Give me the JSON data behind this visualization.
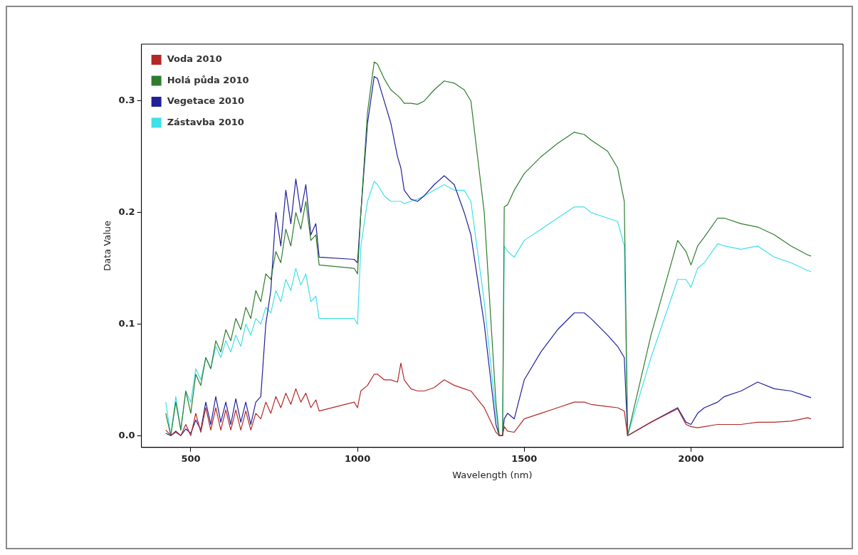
{
  "chart_data": {
    "type": "line",
    "xlabel": "Wavelength (nm)",
    "ylabel": "Data Value",
    "x": [
      425,
      440,
      455,
      470,
      485,
      500,
      515,
      530,
      545,
      560,
      575,
      590,
      605,
      620,
      635,
      650,
      665,
      680,
      695,
      710,
      725,
      740,
      755,
      770,
      785,
      800,
      815,
      830,
      845,
      860,
      875,
      885,
      990,
      1000,
      1010,
      1030,
      1050,
      1060,
      1080,
      1100,
      1120,
      1130,
      1140,
      1160,
      1180,
      1200,
      1230,
      1260,
      1290,
      1320,
      1340,
      1380,
      1415,
      1425,
      1435,
      1440,
      1450,
      1470,
      1500,
      1550,
      1600,
      1650,
      1680,
      1700,
      1750,
      1780,
      1800,
      1810,
      1880,
      1960,
      1985,
      2000,
      2020,
      2040,
      2080,
      2100,
      2150,
      2200,
      2250,
      2300,
      2350,
      2360
    ],
    "series": [
      {
        "name": "Voda 2010",
        "color": "#b42828",
        "values": [
          0.005,
          0,
          0.003,
          0,
          0.01,
          0,
          0.02,
          0.003,
          0.025,
          0.005,
          0.025,
          0.005,
          0.023,
          0.005,
          0.023,
          0.005,
          0.022,
          0.005,
          0.02,
          0.015,
          0.03,
          0.02,
          0.035,
          0.025,
          0.038,
          0.028,
          0.042,
          0.03,
          0.038,
          0.025,
          0.032,
          0.022,
          0.03,
          0.025,
          0.04,
          0.045,
          0.055,
          0.055,
          0.05,
          0.05,
          0.048,
          0.065,
          0.05,
          0.042,
          0.04,
          0.04,
          0.043,
          0.05,
          0.045,
          0.042,
          0.04,
          0.025,
          0.003,
          0,
          0,
          0.008,
          0.004,
          0.003,
          0.015,
          0.02,
          0.025,
          0.03,
          0.03,
          0.028,
          0.026,
          0.025,
          0.022,
          0,
          0.012,
          0.024,
          0.01,
          0.008,
          0.007,
          0.008,
          0.01,
          0.01,
          0.01,
          0.012,
          0.012,
          0.013,
          0.016,
          0.015
        ]
      },
      {
        "name": "Holá půda 2010",
        "color": "#2e7d2e",
        "values": [
          0.02,
          0,
          0.03,
          0.005,
          0.04,
          0.02,
          0.055,
          0.045,
          0.07,
          0.06,
          0.085,
          0.075,
          0.095,
          0.085,
          0.105,
          0.095,
          0.115,
          0.105,
          0.13,
          0.12,
          0.145,
          0.14,
          0.165,
          0.155,
          0.185,
          0.17,
          0.2,
          0.185,
          0.21,
          0.175,
          0.18,
          0.153,
          0.15,
          0.145,
          0.2,
          0.29,
          0.335,
          0.333,
          0.32,
          0.31,
          0.305,
          0.302,
          0.298,
          0.298,
          0.297,
          0.3,
          0.31,
          0.318,
          0.316,
          0.31,
          0.3,
          0.2,
          0.03,
          0,
          0,
          0.205,
          0.207,
          0.22,
          0.235,
          0.25,
          0.262,
          0.272,
          0.27,
          0.265,
          0.255,
          0.24,
          0.21,
          0,
          0.09,
          0.175,
          0.165,
          0.153,
          0.17,
          0.178,
          0.195,
          0.195,
          0.19,
          0.187,
          0.18,
          0.17,
          0.162,
          0.161
        ]
      },
      {
        "name": "Vegetace 2010",
        "color": "#20209a",
        "values": [
          0.002,
          0,
          0.004,
          0,
          0.006,
          0.002,
          0.014,
          0.005,
          0.03,
          0.01,
          0.035,
          0.012,
          0.03,
          0.01,
          0.033,
          0.012,
          0.03,
          0.01,
          0.03,
          0.035,
          0.1,
          0.13,
          0.2,
          0.17,
          0.22,
          0.19,
          0.23,
          0.2,
          0.225,
          0.18,
          0.19,
          0.16,
          0.158,
          0.155,
          0.2,
          0.28,
          0.322,
          0.32,
          0.3,
          0.28,
          0.25,
          0.24,
          0.22,
          0.212,
          0.21,
          0.215,
          0.225,
          0.233,
          0.225,
          0.2,
          0.18,
          0.1,
          0.01,
          0,
          0,
          0.015,
          0.02,
          0.015,
          0.05,
          0.075,
          0.095,
          0.11,
          0.11,
          0.105,
          0.09,
          0.08,
          0.07,
          0,
          0.012,
          0.025,
          0.012,
          0.01,
          0.02,
          0.025,
          0.03,
          0.035,
          0.04,
          0.048,
          0.042,
          0.04,
          0.035,
          0.034
        ]
      },
      {
        "name": "Zástavba 2010",
        "color": "#40e0e8",
        "values": [
          0.03,
          0,
          0.035,
          0.005,
          0.04,
          0.03,
          0.06,
          0.05,
          0.07,
          0.06,
          0.08,
          0.07,
          0.085,
          0.075,
          0.09,
          0.08,
          0.1,
          0.09,
          0.105,
          0.1,
          0.115,
          0.11,
          0.13,
          0.12,
          0.14,
          0.13,
          0.15,
          0.135,
          0.145,
          0.12,
          0.125,
          0.105,
          0.105,
          0.1,
          0.17,
          0.21,
          0.228,
          0.225,
          0.215,
          0.21,
          0.21,
          0.21,
          0.208,
          0.21,
          0.212,
          0.215,
          0.22,
          0.225,
          0.22,
          0.22,
          0.21,
          0.12,
          0.02,
          0,
          0,
          0.17,
          0.165,
          0.16,
          0.175,
          0.185,
          0.195,
          0.205,
          0.205,
          0.2,
          0.195,
          0.192,
          0.17,
          0,
          0.07,
          0.14,
          0.14,
          0.133,
          0.15,
          0.155,
          0.172,
          0.17,
          0.167,
          0.17,
          0.16,
          0.155,
          0.148,
          0.147
        ]
      }
    ],
    "xlim": [
      352,
      2456
    ],
    "ylim": [
      -0.0106,
      0.351
    ],
    "xticks": [
      500,
      1000,
      1500,
      2000
    ],
    "yticks": [
      {
        "value": 0,
        "label": "0.0"
      },
      0.1,
      0.2,
      0.3
    ],
    "grid": false,
    "legend": "top left",
    "marker": "none",
    "line_style": "solid"
  }
}
